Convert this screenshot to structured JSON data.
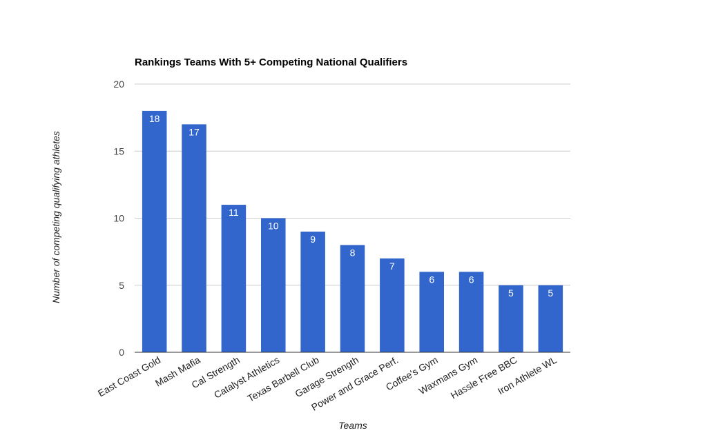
{
  "chart_data": {
    "type": "bar",
    "title": "Rankings Teams With 5+ Competing National Qualifiers",
    "xlabel": "Teams",
    "ylabel": "Number of competing qualifying athletes",
    "categories": [
      "East Coast Gold",
      "Mash Mafia",
      "Cal Strength",
      "Catalyst Athletics",
      "Texas Barbell Club",
      "Garage Strength",
      "Power and Grace Perf.",
      "Coffee's Gym",
      "Waxmans Gym",
      "Hassle Free BBC",
      "Iron Athlete WL"
    ],
    "values": [
      18,
      17,
      11,
      10,
      9,
      8,
      7,
      6,
      6,
      5,
      5
    ],
    "data_labels": [
      "18",
      "17",
      "11",
      "10",
      "9",
      "8",
      "7",
      "6",
      "6",
      "5",
      "5"
    ],
    "yticks": [
      0,
      5,
      10,
      15,
      20
    ],
    "ytick_labels": [
      "0",
      "5",
      "10",
      "15",
      "20"
    ],
    "ylim": [
      0,
      20
    ],
    "grid": true,
    "legend": "none",
    "colors": {
      "bar": "#3366cc",
      "grid": "#cccccc",
      "axis": "#333333"
    }
  }
}
